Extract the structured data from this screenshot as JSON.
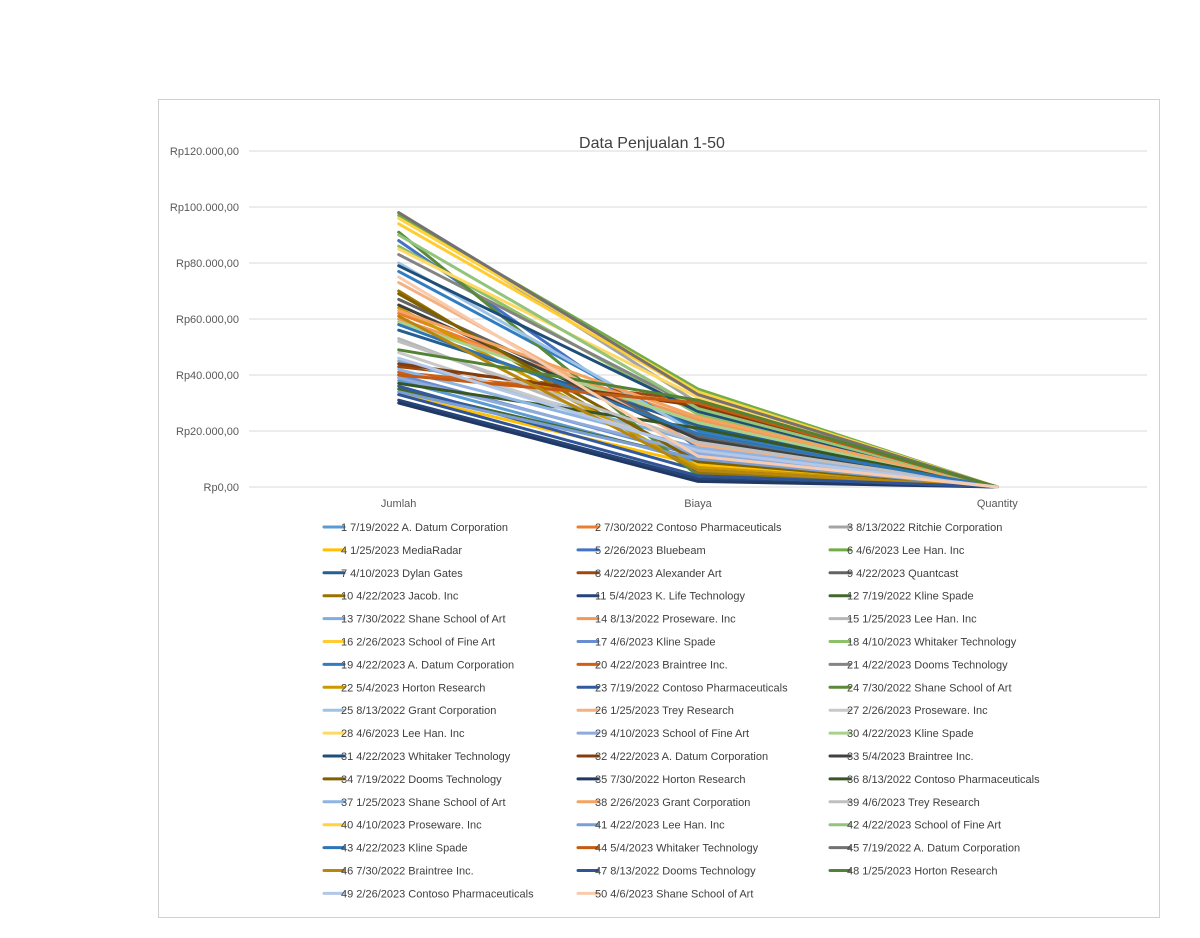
{
  "chart_data": {
    "type": "line",
    "title": "Data Penjualan 1-50",
    "xlabel": "",
    "ylabel": "",
    "categories": [
      "Jumlah",
      "Biaya",
      "Quantity"
    ],
    "ylim": [
      0,
      120000
    ],
    "yticks": [
      0,
      20000,
      40000,
      60000,
      80000,
      100000,
      120000
    ],
    "ytick_labels": [
      "Rp0,00",
      "Rp20.000,00",
      "Rp40.000,00",
      "Rp60.000,00",
      "Rp80.000,00",
      "Rp100.000,00",
      "Rp120.000,00"
    ],
    "grid": true,
    "legend_position": "bottom",
    "series": [
      {
        "name": "1 7/19/2022 A. Datum Corporation",
        "color": "#5B9BD5",
        "values": [
          38000,
          9000,
          5
        ]
      },
      {
        "name": "2 7/30/2022 Contoso Pharmaceuticals",
        "color": "#ED7D31",
        "values": [
          62000,
          21000,
          4
        ]
      },
      {
        "name": "3 8/13/2022 Ritchie Corporation",
        "color": "#A5A5A5",
        "values": [
          98000,
          30000,
          6
        ]
      },
      {
        "name": "4 1/25/2023 MediaRadar",
        "color": "#FFC000",
        "values": [
          33000,
          8000,
          3
        ]
      },
      {
        "name": "5 2/26/2023 Bluebeam",
        "color": "#4472C4",
        "values": [
          88000,
          14000,
          8
        ]
      },
      {
        "name": "6 4/6/2023 Lee Han. Inc",
        "color": "#70AD47",
        "values": [
          97000,
          35000,
          7
        ]
      },
      {
        "name": "7 4/10/2023 Dylan Gates",
        "color": "#255E91",
        "values": [
          56000,
          22000,
          4
        ]
      },
      {
        "name": "8 4/22/2023 Alexander Art",
        "color": "#9E480E",
        "values": [
          43000,
          31000,
          5
        ]
      },
      {
        "name": "9 4/22/2023 Quantcast",
        "color": "#636363",
        "values": [
          67000,
          18000,
          6
        ]
      },
      {
        "name": "10 4/22/2023 Jacob. Inc",
        "color": "#997300",
        "values": [
          70000,
          5000,
          3
        ]
      },
      {
        "name": "11 5/4/2023 K. Life Technology",
        "color": "#264478",
        "values": [
          31000,
          3000,
          2
        ]
      },
      {
        "name": "12 7/19/2022 Kline Spade",
        "color": "#43682B",
        "values": [
          35000,
          10000,
          4
        ]
      },
      {
        "name": "13 7/30/2022 Shane School of Art",
        "color": "#7CAFDD",
        "values": [
          45000,
          16000,
          5
        ]
      },
      {
        "name": "14 8/13/2022 Proseware. Inc",
        "color": "#F1975A",
        "values": [
          60000,
          24000,
          6
        ]
      },
      {
        "name": "15 1/25/2023 Lee Han. Inc",
        "color": "#B7B7B7",
        "values": [
          53000,
          12000,
          4
        ]
      },
      {
        "name": "16 2/26/2023 School of Fine Art",
        "color": "#FFCD33",
        "values": [
          94000,
          33000,
          7
        ]
      },
      {
        "name": "17 4/6/2023 Kline Spade",
        "color": "#698ED0",
        "values": [
          40000,
          11000,
          5
        ]
      },
      {
        "name": "18 4/10/2023 Whitaker Technology",
        "color": "#8CC168",
        "values": [
          86000,
          26000,
          6
        ]
      },
      {
        "name": "19 4/22/2023 A. Datum Corporation",
        "color": "#327DC2",
        "values": [
          77000,
          20000,
          5
        ]
      },
      {
        "name": "20 4/22/2023 Braintree Inc.",
        "color": "#D26012",
        "values": [
          41000,
          30000,
          4
        ]
      },
      {
        "name": "21 4/22/2023 Dooms Technology",
        "color": "#848484",
        "values": [
          83000,
          28000,
          6
        ]
      },
      {
        "name": "22 5/4/2023 Horton Research",
        "color": "#CC9A00",
        "values": [
          64000,
          7000,
          3
        ]
      },
      {
        "name": "23 7/19/2022 Contoso Pharmaceuticals",
        "color": "#335AA1",
        "values": [
          36000,
          6000,
          3
        ]
      },
      {
        "name": "24 7/30/2022 Shane School of Art",
        "color": "#5A8A39",
        "values": [
          91000,
          4000,
          2
        ]
      },
      {
        "name": "25 8/13/2022 Grant Corporation",
        "color": "#9DC3E6",
        "values": [
          80000,
          19000,
          5
        ]
      },
      {
        "name": "26 1/25/2023 Trey Research",
        "color": "#F4B183",
        "values": [
          73000,
          15000,
          4
        ]
      },
      {
        "name": "27 2/26/2023 Proseware. Inc",
        "color": "#C9C9C9",
        "values": [
          48000,
          13000,
          4
        ]
      },
      {
        "name": "28 4/6/2023 Lee Han. Inc",
        "color": "#FFD966",
        "values": [
          85000,
          32000,
          7
        ]
      },
      {
        "name": "29 4/10/2023 School of Fine Art",
        "color": "#8FAADC",
        "values": [
          39000,
          12000,
          4
        ]
      },
      {
        "name": "30 4/22/2023 Kline Spade",
        "color": "#A9D18E",
        "values": [
          59000,
          23000,
          5
        ]
      },
      {
        "name": "31 4/22/2023 Whitaker Technology",
        "color": "#1F4E79",
        "values": [
          79000,
          27000,
          6
        ]
      },
      {
        "name": "32 4/22/2023 A. Datum Corporation",
        "color": "#843C0C",
        "values": [
          44000,
          29000,
          5
        ]
      },
      {
        "name": "33 5/4/2023 Braintree Inc.",
        "color": "#404040",
        "values": [
          65000,
          17000,
          4
        ]
      },
      {
        "name": "34 7/19/2022 Dooms Technology",
        "color": "#7F6000",
        "values": [
          69000,
          9000,
          3
        ]
      },
      {
        "name": "35 7/30/2022 Horton Research",
        "color": "#203864",
        "values": [
          30000,
          2000,
          2
        ]
      },
      {
        "name": "36 8/13/2022 Contoso Pharmaceuticals",
        "color": "#375623",
        "values": [
          37000,
          21000,
          5
        ]
      },
      {
        "name": "37 1/25/2023 Shane School of Art",
        "color": "#8EB4E3",
        "values": [
          42000,
          14000,
          4
        ]
      },
      {
        "name": "38 2/26/2023 Grant Corporation",
        "color": "#F4A460",
        "values": [
          63000,
          25000,
          5
        ]
      },
      {
        "name": "39 4/6/2023 Trey Research",
        "color": "#BFBFBF",
        "values": [
          52000,
          16000,
          4
        ]
      },
      {
        "name": "40 4/10/2023 Proseware. Inc",
        "color": "#FFD23F",
        "values": [
          96000,
          34000,
          7
        ]
      },
      {
        "name": "41 4/22/2023 Lee Han. Inc",
        "color": "#7B9FD4",
        "values": [
          34000,
          10000,
          4
        ]
      },
      {
        "name": "42 4/22/2023 School of Fine Art",
        "color": "#93C47D",
        "values": [
          90000,
          28000,
          6
        ]
      },
      {
        "name": "43 4/22/2023 Kline Spade",
        "color": "#2E75B6",
        "values": [
          58000,
          19000,
          5
        ]
      },
      {
        "name": "44 5/4/2023 Whitaker Technology",
        "color": "#C55A11",
        "values": [
          40000,
          30000,
          5
        ]
      },
      {
        "name": "45 7/19/2022 A. Datum Corporation",
        "color": "#767171",
        "values": [
          98000,
          33000,
          7
        ]
      },
      {
        "name": "46 7/30/2022 Braintree Inc.",
        "color": "#B8860B",
        "values": [
          61000,
          6000,
          3
        ]
      },
      {
        "name": "47 8/13/2022 Dooms Technology",
        "color": "#2F5597",
        "values": [
          33000,
          4000,
          2
        ]
      },
      {
        "name": "48 1/25/2023 Horton Research",
        "color": "#548235",
        "values": [
          49000,
          31000,
          6
        ]
      },
      {
        "name": "49 2/26/2023 Contoso Pharmaceuticals",
        "color": "#B4C7E7",
        "values": [
          46000,
          13000,
          4
        ]
      },
      {
        "name": "50 4/6/2023 Shane School of Art",
        "color": "#F8CBAD",
        "values": [
          75000,
          11000,
          4
        ]
      }
    ]
  }
}
